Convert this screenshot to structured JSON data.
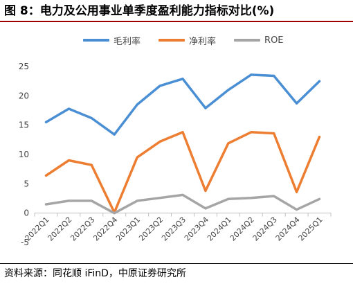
{
  "figure": {
    "title": "图 8：电力及公用事业单季度盈利能力指标对比(%)",
    "source": "资料来源：同花顺 iFinD，中原证券研究所"
  },
  "chart_data": {
    "type": "line",
    "categories": [
      "2022Q1",
      "2022Q2",
      "2022Q3",
      "2022Q4",
      "2023Q1",
      "2023Q2",
      "2023Q3",
      "2023Q4",
      "2024Q1",
      "2024Q2",
      "2024Q3",
      "2024Q4",
      "2025Q1"
    ],
    "series": [
      {
        "name": "毛利率",
        "color": "#4a8fd4",
        "values": [
          15.5,
          17.8,
          16.2,
          13.4,
          18.5,
          21.7,
          22.9,
          17.9,
          21.0,
          23.6,
          23.4,
          18.7,
          22.5
        ]
      },
      {
        "name": "净利率",
        "color": "#ed7d31",
        "values": [
          6.4,
          9.0,
          8.2,
          0.1,
          9.5,
          12.2,
          13.8,
          3.8,
          11.9,
          13.8,
          13.6,
          3.6,
          13.0
        ]
      },
      {
        "name": "ROE",
        "color": "#a5a5a5",
        "values": [
          1.5,
          2.1,
          2.1,
          0.0,
          2.1,
          2.6,
          3.1,
          0.8,
          2.4,
          2.6,
          2.9,
          0.6,
          2.4
        ]
      }
    ],
    "yticks": [
      -5,
      0,
      5,
      10,
      15,
      20,
      25
    ],
    "ylim": [
      -5,
      25
    ],
    "grid": false,
    "legend": "top"
  }
}
